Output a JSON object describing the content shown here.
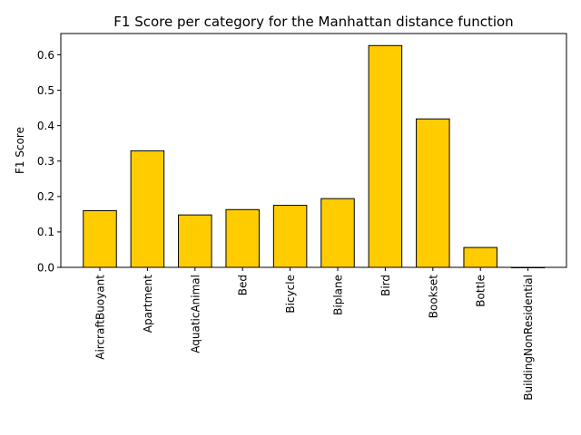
{
  "chart_data": {
    "type": "bar",
    "title": "F1 Score per category for the Manhattan distance function",
    "xlabel": "",
    "ylabel": "F1 Score",
    "categories": [
      "AircraftBuoyant",
      "Apartment",
      "AquaticAnimal",
      "Bed",
      "Bicycle",
      "Biplane",
      "Bird",
      "Bookset",
      "Bottle",
      "BuildingNonResidential"
    ],
    "values": [
      0.16,
      0.329,
      0.148,
      0.163,
      0.175,
      0.194,
      0.626,
      0.419,
      0.056,
      0.0
    ],
    "ylim": [
      0,
      0.66
    ],
    "yticks": [
      0.0,
      0.1,
      0.2,
      0.3,
      0.4,
      0.5,
      0.6
    ],
    "ytick_labels": [
      "0.0",
      "0.1",
      "0.2",
      "0.3",
      "0.4",
      "0.5",
      "0.6"
    ],
    "grid": false,
    "legend": "none",
    "colors": {
      "bar_fill": "#ffcc00",
      "bar_edge": "#000000"
    }
  }
}
